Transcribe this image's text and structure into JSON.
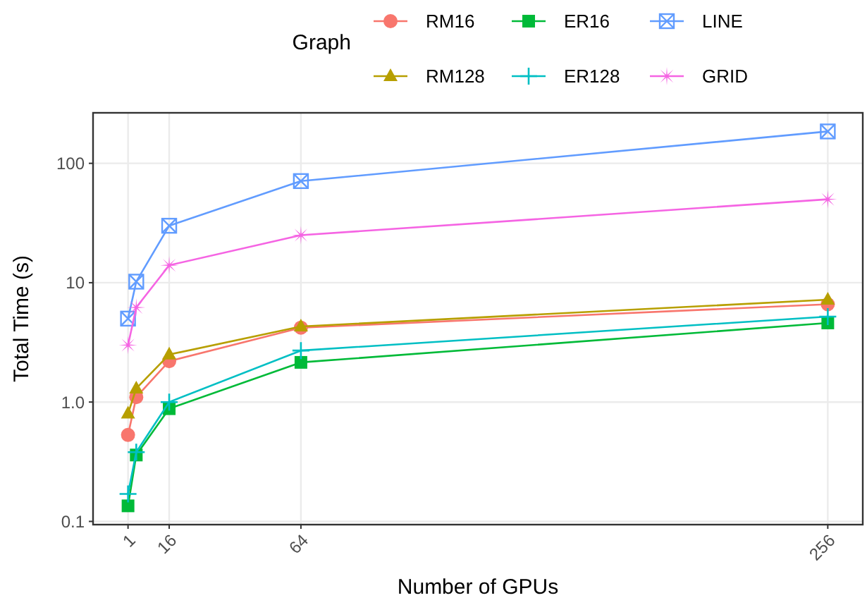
{
  "chart_data": {
    "type": "line",
    "xlabel": "Number of GPUs",
    "ylabel": "Total Time (s)",
    "legend_title": "Graph",
    "legend": "top",
    "log": "y",
    "grid": true,
    "x": [
      1,
      4,
      16,
      64,
      256
    ],
    "xlim": [
      -11.75,
      268.75
    ],
    "xticks": [
      1,
      16,
      64,
      256
    ],
    "ylim": [
      0.094,
      265
    ],
    "yticks": [
      0.1,
      {
        "value": 1,
        "label": "1.0"
      },
      10,
      100
    ],
    "series": [
      {
        "name": "RM16",
        "color": "#f8766d",
        "marker": "circle",
        "values": [
          0.53,
          1.1,
          2.2,
          4.2,
          6.6
        ]
      },
      {
        "name": "RM128",
        "color": "#b79f00",
        "marker": "triangle",
        "values": [
          0.8,
          1.3,
          2.5,
          4.3,
          7.2
        ]
      },
      {
        "name": "ER16",
        "color": "#00ba38",
        "marker": "square",
        "values": [
          0.135,
          0.36,
          0.88,
          2.15,
          4.6
        ]
      },
      {
        "name": "ER128",
        "color": "#00bfc4",
        "marker": "cross",
        "values": [
          0.17,
          0.38,
          1.0,
          2.7,
          5.2
        ]
      },
      {
        "name": "LINE",
        "color": "#619cff",
        "marker": "square",
        "values": [
          5.0,
          10.2,
          30,
          71,
          185
        ]
      },
      {
        "name": "GRID",
        "color": "#f564e3",
        "marker": "star",
        "values": [
          3.0,
          6.2,
          14,
          25,
          50
        ]
      }
    ]
  }
}
